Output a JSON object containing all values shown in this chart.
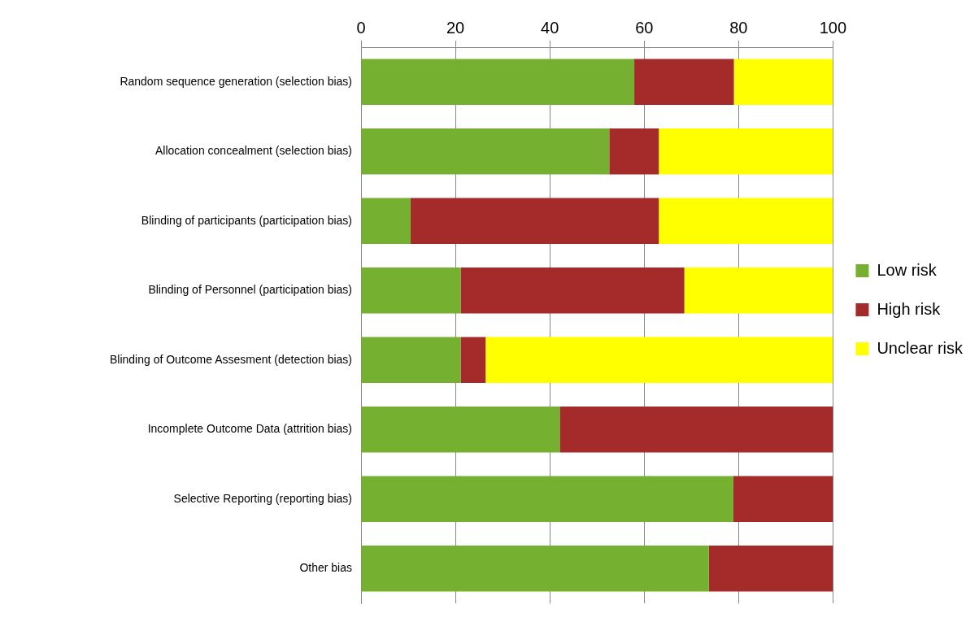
{
  "chart_data": {
    "type": "bar",
    "orientation": "horizontal",
    "stacked": true,
    "categories": [
      "Random sequence generation (selection bias)",
      "Allocation concealment (selection bias)",
      "Blinding of participants (participation bias)",
      "Blinding of Personnel (participation bias)",
      "Blinding of Outcome Assesment (detection bias)",
      "Incomplete Outcome Data (attrition bias)",
      "Selective Reporting (reporting bias)",
      "Other bias"
    ],
    "series": [
      {
        "name": "Low risk",
        "color": "#76b030",
        "values": [
          57.9,
          52.6,
          10.5,
          21.1,
          21.1,
          42.1,
          78.9,
          73.7
        ]
      },
      {
        "name": "High risk",
        "color": "#a52a2a",
        "values": [
          21.1,
          10.5,
          52.6,
          47.4,
          5.3,
          57.9,
          21.1,
          26.3
        ]
      },
      {
        "name": "Unclear risk",
        "color": "#ffff00",
        "values": [
          21.0,
          36.9,
          36.9,
          31.5,
          73.6,
          0,
          0,
          0
        ]
      }
    ],
    "xlim": [
      0,
      100
    ],
    "xticks": [
      0,
      20,
      40,
      60,
      80,
      100
    ],
    "grid": "x",
    "legend": "right"
  }
}
